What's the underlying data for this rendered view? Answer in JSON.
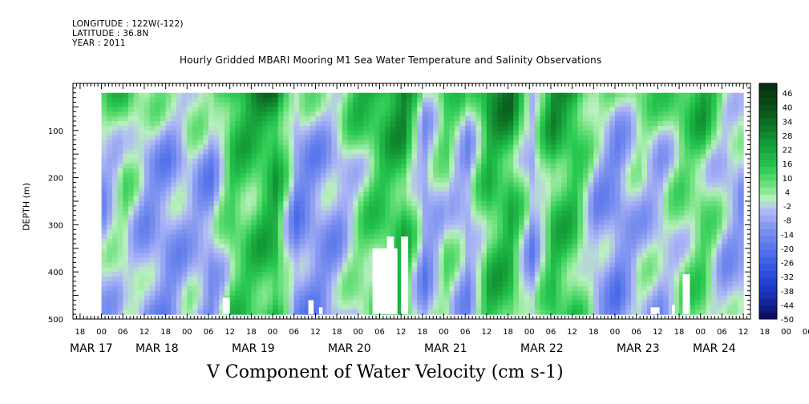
{
  "meta": {
    "longitude": "LONGITUDE : 122W(-122)",
    "latitude": "LATITUDE : 36.8N",
    "year": "YEAR : 2011"
  },
  "chart_data": {
    "type": "heatmap",
    "title": "Hourly Gridded MBARI Mooring M1 Sea Water Temperature and Salinity Observations",
    "xlabel": "V Component of Water Velocity (cm s-1)",
    "ylabel": "DEPTH (m)",
    "x_range_hours": [
      -8,
      182
    ],
    "y_range_depth_m": [
      0,
      500
    ],
    "y_ticks": [
      100,
      200,
      300,
      400,
      500
    ],
    "hour_ticks": [
      "18",
      "00",
      "06",
      "12",
      "18",
      "00",
      "06",
      "12",
      "18",
      "00",
      "06",
      "12",
      "18",
      "00",
      "06",
      "12",
      "18",
      "00",
      "06",
      "12",
      "18",
      "00",
      "06",
      "12",
      "18",
      "00",
      "06",
      "12",
      "18",
      "00",
      "06",
      "12",
      "18",
      "00",
      "06",
      "12"
    ],
    "date_labels": [
      "MAR 17",
      "MAR 18",
      "MAR 19",
      "MAR 20",
      "MAR 21",
      "MAR 22",
      "MAR 23",
      "MAR 24"
    ],
    "colorbar": {
      "levels": [
        46,
        40,
        34,
        28,
        22,
        16,
        10,
        4,
        -2,
        -8,
        -14,
        -20,
        -26,
        -32,
        -38,
        -44,
        -50
      ],
      "min": -50,
      "max": 52
    },
    "data_extent": {
      "start_hour": 0,
      "end_hour": 180,
      "top_depth_m": 20,
      "bottom_depth_m": 490
    },
    "columns": [
      {
        "t": 0,
        "v": -6
      },
      {
        "t": 6,
        "v": 4
      },
      {
        "t": 12,
        "v": -8
      },
      {
        "t": 18,
        "v": -10
      },
      {
        "t": 24,
        "v": -4
      },
      {
        "t": 30,
        "v": -10
      },
      {
        "t": 36,
        "v": 12
      },
      {
        "t": 42,
        "v": 14
      },
      {
        "t": 48,
        "v": 20
      },
      {
        "t": 54,
        "v": -12
      },
      {
        "t": 60,
        "v": -10
      },
      {
        "t": 66,
        "v": -6
      },
      {
        "t": 72,
        "v": 6
      },
      {
        "t": 78,
        "v": 14
      },
      {
        "t": 84,
        "v": 18
      },
      {
        "t": 90,
        "v": -10
      },
      {
        "t": 96,
        "v": 4
      },
      {
        "t": 102,
        "v": -8
      },
      {
        "t": 108,
        "v": 16
      },
      {
        "t": 114,
        "v": 18
      },
      {
        "t": 120,
        "v": -8
      },
      {
        "t": 126,
        "v": 16
      },
      {
        "t": 132,
        "v": 14
      },
      {
        "t": 138,
        "v": -6
      },
      {
        "t": 144,
        "v": -12
      },
      {
        "t": 150,
        "v": -2
      },
      {
        "t": 156,
        "v": -4
      },
      {
        "t": 162,
        "v": 6
      },
      {
        "t": 168,
        "v": 10
      },
      {
        "t": 174,
        "v": -4
      },
      {
        "t": 180,
        "v": -8
      }
    ],
    "missing_blocks": [
      {
        "t0": 34,
        "t1": 36,
        "depth0": 455,
        "depth1": 490
      },
      {
        "t0": 58,
        "t1": 59.5,
        "depth0": 460,
        "depth1": 490
      },
      {
        "t0": 61,
        "t1": 62,
        "depth0": 475,
        "depth1": 490
      },
      {
        "t0": 76,
        "t1": 83,
        "depth0": 350,
        "depth1": 490
      },
      {
        "t0": 80,
        "t1": 82,
        "depth0": 325,
        "depth1": 490
      },
      {
        "t0": 84,
        "t1": 86,
        "depth0": 325,
        "depth1": 490
      },
      {
        "t0": 154,
        "t1": 156.5,
        "depth0": 475,
        "depth1": 490
      },
      {
        "t0": 160,
        "t1": 160.8,
        "depth0": 470,
        "depth1": 490
      },
      {
        "t0": 163,
        "t1": 165,
        "depth0": 405,
        "depth1": 490
      }
    ]
  }
}
